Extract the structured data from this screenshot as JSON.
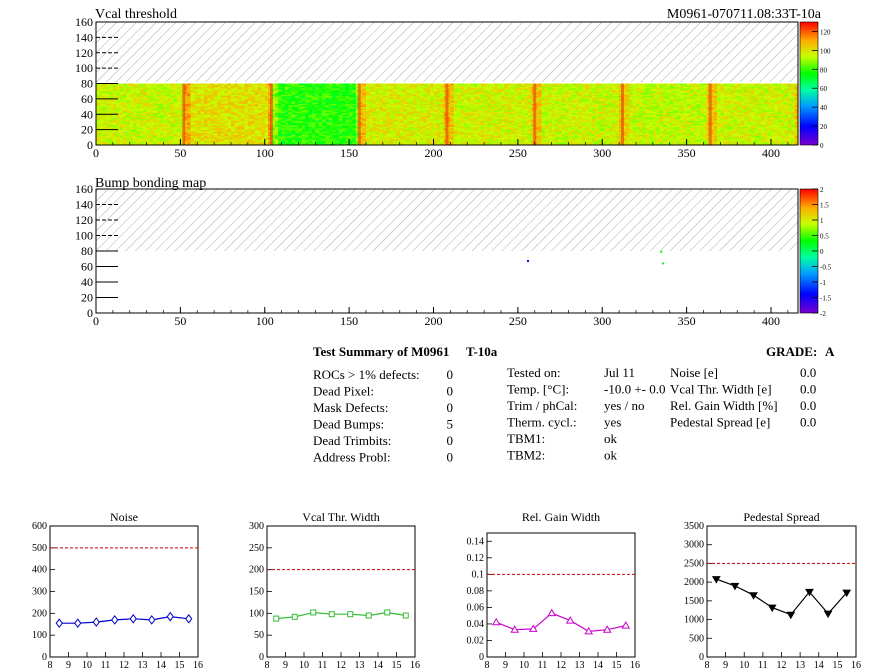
{
  "header": {
    "title_left": "Vcal threshold",
    "title_right": "M0961-070711.08:33T-10a"
  },
  "colors": {
    "hatch": "#7f8c8d",
    "noise": "#0000cc",
    "vcal_width": "#33bb33",
    "gain_width": "#cc00cc",
    "pedestal": "#000000",
    "limit_line": "#cc0000"
  },
  "summary": {
    "title": "Test Summary of M0961",
    "title_suffix": "T-10a",
    "grade_label": "GRADE:",
    "grade_value": "A",
    "col1": [
      {
        "label": "ROCs > 1% defects:",
        "value": "0"
      },
      {
        "label": "Dead Pixel:",
        "value": "0"
      },
      {
        "label": "Mask Defects:",
        "value": "0"
      },
      {
        "label": "Dead Bumps:",
        "value": "5"
      },
      {
        "label": "Dead Trimbits:",
        "value": "0"
      },
      {
        "label": "Address Probl:",
        "value": "0"
      }
    ],
    "col2": [
      {
        "label": "Tested on:",
        "value": "Jul 11"
      },
      {
        "label": "Temp. [°C]:",
        "value": "-10.0 +- 0.0"
      },
      {
        "label": "Trim / phCal:",
        "value": "yes / no"
      },
      {
        "label": "Therm. cycl.:",
        "value": "yes"
      },
      {
        "label": "TBM1:",
        "value": "ok"
      },
      {
        "label": "TBM2:",
        "value": "ok"
      }
    ],
    "col3": [
      {
        "label": "Noise [e]",
        "value": "0.0"
      },
      {
        "label": "Vcal Thr. Width [e]",
        "value": "0.0"
      },
      {
        "label": "Rel. Gain Width [%]",
        "value": "0.0"
      },
      {
        "label": "Pedestal Spread [e]",
        "value": "0.0"
      }
    ]
  },
  "chart_data": [
    {
      "type": "heatmap",
      "title": "Vcal threshold",
      "x_ticks": [
        "0",
        "50",
        "100",
        "150",
        "200",
        "250",
        "300",
        "350",
        "400"
      ],
      "y_ticks": [
        "0",
        "20",
        "40",
        "60",
        "80",
        "100",
        "120",
        "140",
        "160"
      ],
      "xlim": [
        0,
        416
      ],
      "ylim": [
        0,
        160
      ],
      "filled_y_range": [
        0,
        80
      ],
      "hatched_y_range": [
        80,
        160
      ],
      "colorbar_ticks": [
        "0",
        "20",
        "40",
        "60",
        "80",
        "100",
        "120"
      ],
      "colorbar_range": [
        0,
        130
      ],
      "roc_columns": [
        {
          "x": [
            0,
            52
          ],
          "level": 95
        },
        {
          "x": [
            52,
            104
          ],
          "level": 100
        },
        {
          "x": [
            104,
            156
          ],
          "level": 78
        },
        {
          "x": [
            156,
            208
          ],
          "level": 97
        },
        {
          "x": [
            208,
            260
          ],
          "level": 96
        },
        {
          "x": [
            260,
            312
          ],
          "level": 95
        },
        {
          "x": [
            312,
            364
          ],
          "level": 94
        },
        {
          "x": [
            364,
            416
          ],
          "level": 95
        }
      ],
      "hot_columns": [
        52,
        104,
        156,
        208,
        260,
        312,
        364
      ]
    },
    {
      "type": "heatmap",
      "title": "Bump bonding map",
      "x_ticks": [
        "0",
        "50",
        "100",
        "150",
        "200",
        "250",
        "300",
        "350",
        "400"
      ],
      "y_ticks": [
        "0",
        "20",
        "40",
        "60",
        "80",
        "100",
        "120",
        "140",
        "160"
      ],
      "xlim": [
        0,
        416
      ],
      "ylim": [
        0,
        160
      ],
      "hatched_y_range": [
        80,
        160
      ],
      "colorbar_ticks": [
        "2",
        "1.5",
        "1",
        "0.5",
        "0",
        "-0.5",
        "-1",
        "-1.5",
        "-2"
      ],
      "colorbar_range": [
        -2,
        2
      ],
      "points": [
        {
          "x": 256,
          "y": 67,
          "value": -1.5
        },
        {
          "x": 336,
          "y": 64,
          "value": 0.3
        },
        {
          "x": 335,
          "y": 79,
          "value": 0.3
        }
      ]
    },
    {
      "type": "line",
      "title": "Noise",
      "x_ticks": [
        "8",
        "9",
        "10",
        "11",
        "12",
        "13",
        "14",
        "15",
        "16"
      ],
      "y_ticks": [
        "0",
        "100",
        "200",
        "300",
        "400",
        "500",
        "600"
      ],
      "xlim": [
        8,
        16
      ],
      "ylim": [
        0,
        600
      ],
      "limit": 500,
      "marker": "diamond",
      "color": "#0000cc",
      "x": [
        8.5,
        9.5,
        10.5,
        11.5,
        12.5,
        13.5,
        14.5,
        15.5
      ],
      "y": [
        155,
        155,
        160,
        170,
        175,
        170,
        185,
        175
      ]
    },
    {
      "type": "line",
      "title": "Vcal Thr. Width",
      "x_ticks": [
        "8",
        "9",
        "10",
        "11",
        "12",
        "13",
        "14",
        "15",
        "16"
      ],
      "y_ticks": [
        "0",
        "50",
        "100",
        "150",
        "200",
        "250",
        "300"
      ],
      "xlim": [
        8,
        16
      ],
      "ylim": [
        0,
        300
      ],
      "limit": 200,
      "marker": "square",
      "color": "#33bb33",
      "x": [
        8.5,
        9.5,
        10.5,
        11.5,
        12.5,
        13.5,
        14.5,
        15.5
      ],
      "y": [
        88,
        92,
        102,
        98,
        98,
        95,
        102,
        95
      ]
    },
    {
      "type": "line",
      "title": "Rel. Gain Width",
      "x_ticks": [
        "8",
        "9",
        "10",
        "11",
        "12",
        "13",
        "14",
        "15",
        "16"
      ],
      "y_ticks": [
        "0",
        "0.02",
        "0.04",
        "0.06",
        "0.08",
        "0.1",
        "0.12",
        "0.14"
      ],
      "xlim": [
        8,
        16
      ],
      "ylim": [
        0,
        0.15
      ],
      "limit": 0.1,
      "marker": "triangle",
      "color": "#cc00cc",
      "x": [
        8.5,
        9.5,
        10.5,
        11.5,
        12.5,
        13.5,
        14.5,
        15.5
      ],
      "y": [
        0.042,
        0.033,
        0.034,
        0.053,
        0.044,
        0.031,
        0.033,
        0.038
      ]
    },
    {
      "type": "line",
      "title": "Pedestal Spread",
      "x_ticks": [
        "8",
        "9",
        "10",
        "11",
        "12",
        "13",
        "14",
        "15",
        "16"
      ],
      "y_ticks": [
        "0",
        "500",
        "1000",
        "1500",
        "2000",
        "2500",
        "3000",
        "3500"
      ],
      "xlim": [
        8,
        16
      ],
      "ylim": [
        0,
        3500
      ],
      "limit": 2500,
      "marker": "triangle-down",
      "color": "#000000",
      "x": [
        8.5,
        9.5,
        10.5,
        11.5,
        12.5,
        13.5,
        14.5,
        15.5
      ],
      "y": [
        2080,
        1900,
        1650,
        1320,
        1130,
        1740,
        1160,
        1720
      ]
    }
  ]
}
